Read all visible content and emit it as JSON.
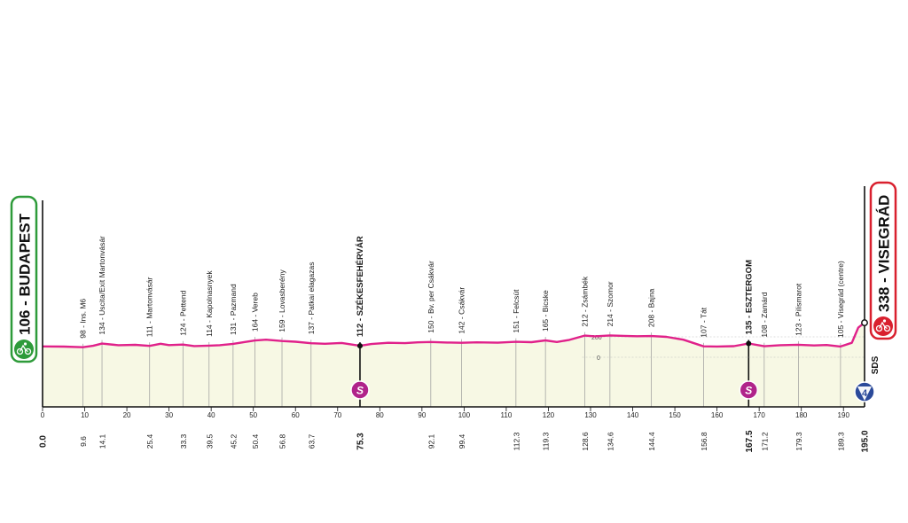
{
  "start": {
    "label": "106 - BUDAPEST",
    "color": "#2e9b3a",
    "icon": "cycling-icon"
  },
  "finish": {
    "label": "338 - VISEGRÁD",
    "color": "#d9202e",
    "icon": "cycling-icon"
  },
  "side_label": "SDS",
  "finish_badge": "4",
  "y_axis_labels": [
    "200",
    "0"
  ],
  "profile": {
    "distance_km": [
      0,
      5,
      9.6,
      12,
      14.1,
      18,
      22,
      25.4,
      28,
      30,
      33.3,
      36,
      39.5,
      42,
      45.2,
      48,
      50.4,
      53,
      56.8,
      60,
      63.7,
      67,
      71,
      75.3,
      78,
      82,
      86,
      89,
      92.1,
      96,
      99.4,
      103,
      108,
      112.3,
      116,
      119.3,
      122,
      125,
      128.6,
      131,
      134.6,
      138,
      141,
      144.4,
      148,
      152,
      156.8,
      160,
      164,
      167.5,
      171.2,
      175,
      179.3,
      183,
      186,
      189.3,
      192,
      193.5,
      195
    ],
    "altitude_m": [
      106,
      104,
      98,
      112,
      134,
      118,
      122,
      111,
      132,
      119,
      124,
      110,
      114,
      118,
      131,
      150,
      164,
      172,
      159,
      152,
      137,
      132,
      140,
      112,
      130,
      142,
      138,
      146,
      150,
      144,
      142,
      146,
      143,
      151,
      148,
      165,
      150,
      170,
      212,
      205,
      214,
      210,
      206,
      208,
      200,
      172,
      107,
      105,
      109,
      135,
      108,
      118,
      123,
      116,
      120,
      105,
      142,
      290,
      338
    ]
  },
  "waypoints": [
    {
      "km": 0.0,
      "alt": 106,
      "km_label": "0.0",
      "label": ""
    },
    {
      "km": 9.6,
      "alt": 98,
      "km_label": "9.6",
      "label": "98 - Ins. M6"
    },
    {
      "km": 14.1,
      "alt": 134,
      "km_label": "14.1",
      "label": "134 - Uscita/Exit Martonvásár"
    },
    {
      "km": 25.4,
      "alt": 111,
      "km_label": "25.4",
      "label": "111 - Martonvásár"
    },
    {
      "km": 33.3,
      "alt": 124,
      "km_label": "33.3",
      "label": "124 - Pettend"
    },
    {
      "km": 39.5,
      "alt": 114,
      "km_label": "39.5",
      "label": "114 - Kapolnasnyek"
    },
    {
      "km": 45.2,
      "alt": 131,
      "km_label": "45.2",
      "label": "131 - Pazmand"
    },
    {
      "km": 50.4,
      "alt": 164,
      "km_label": "50.4",
      "label": "164 - Vereb"
    },
    {
      "km": 56.8,
      "alt": 159,
      "km_label": "56.8",
      "label": "159 - Lovasberény"
    },
    {
      "km": 63.7,
      "alt": 137,
      "km_label": "63.7",
      "label": "137 - Patkai elagazas"
    },
    {
      "km": 75.3,
      "alt": 112,
      "km_label": "75.3",
      "label": "112 - SZÉKESFEHÉRVÁR",
      "major": true,
      "sprint": true
    },
    {
      "km": 92.1,
      "alt": 150,
      "km_label": "92.1",
      "label": "150 - Bv. per Csákvár"
    },
    {
      "km": 99.4,
      "alt": 142,
      "km_label": "99.4",
      "label": "142 - Csákvár"
    },
    {
      "km": 112.3,
      "alt": 151,
      "km_label": "112.3",
      "label": "151 - Felcsút"
    },
    {
      "km": 119.3,
      "alt": 165,
      "km_label": "119.3",
      "label": "165 - Bicske"
    },
    {
      "km": 128.6,
      "alt": 212,
      "km_label": "128.6",
      "label": "212 - Zsámbék"
    },
    {
      "km": 134.6,
      "alt": 214,
      "km_label": "134.6",
      "label": "214 - Szomor"
    },
    {
      "km": 144.4,
      "alt": 208,
      "km_label": "144.4",
      "label": "208 - Bajna"
    },
    {
      "km": 156.8,
      "alt": 107,
      "km_label": "156.8",
      "label": "107 - Tát"
    },
    {
      "km": 167.5,
      "alt": 135,
      "km_label": "167.5",
      "label": "135 - ESZTERGOM",
      "major": true,
      "sprint": true
    },
    {
      "km": 171.2,
      "alt": 108,
      "km_label": "171.2",
      "label": "108 - Zamárd"
    },
    {
      "km": 179.3,
      "alt": 123,
      "km_label": "179.3",
      "label": "123 - Pilismarot"
    },
    {
      "km": 189.3,
      "alt": 105,
      "km_label": "189.3",
      "label": "105 - Visegrád (centre)"
    },
    {
      "km": 195.0,
      "alt": 338,
      "km_label": "195.0",
      "label": ""
    }
  ],
  "x_ticks": [
    0,
    10,
    20,
    30,
    40,
    50,
    60,
    70,
    80,
    90,
    100,
    110,
    120,
    130,
    140,
    150,
    160,
    170,
    180,
    190
  ],
  "sprint_badge": "S",
  "colors": {
    "profile_line": "#e0218a",
    "profile_fill": "#f7f8e4",
    "sprint": "#b0238a",
    "finish_badge": "#2b4a9a"
  }
}
